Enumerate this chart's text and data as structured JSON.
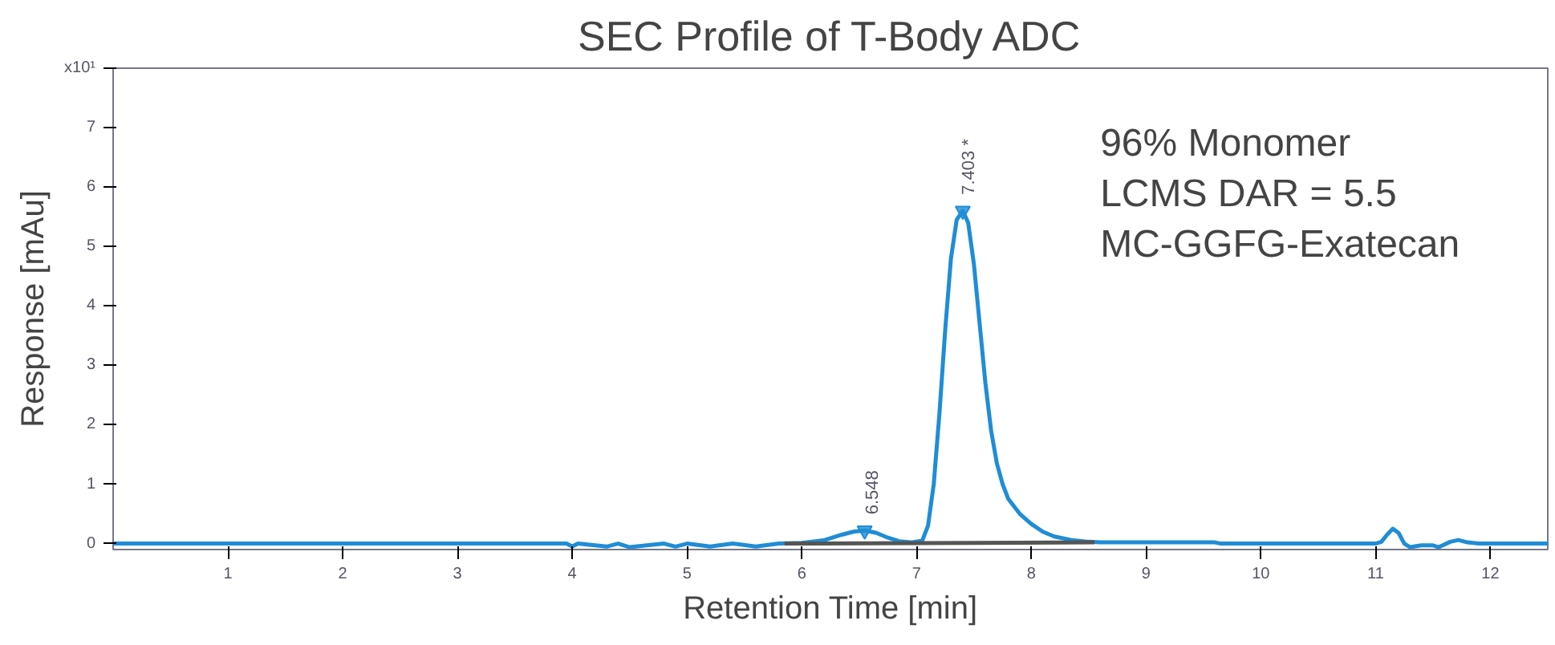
{
  "chart_data": {
    "type": "line",
    "title": "SEC Profile of T-Body ADC",
    "xlabel": "Retention Time [min]",
    "ylabel": "Response [mAu]",
    "xlim": [
      0,
      12.5
    ],
    "ylim": [
      -0.1,
      8
    ],
    "xticks": [
      1,
      2,
      3,
      4,
      5,
      6,
      7,
      8,
      9,
      10,
      11,
      12
    ],
    "yticks": [
      0,
      1,
      2,
      3,
      4,
      5,
      6,
      7,
      {
        "value": 8,
        "label": "x10¹"
      }
    ],
    "grid": false,
    "series": [
      {
        "color": "#1f8dd6",
        "x": [
          0,
          3.95,
          4.0,
          4.05,
          4.3,
          4.4,
          4.5,
          4.8,
          4.9,
          5.0,
          5.2,
          5.4,
          5.6,
          5.8,
          6.0,
          6.2,
          6.35,
          6.45,
          6.548,
          6.65,
          6.75,
          6.85,
          6.95,
          7.05,
          7.1,
          7.15,
          7.2,
          7.25,
          7.3,
          7.35,
          7.403,
          7.45,
          7.5,
          7.55,
          7.6,
          7.65,
          7.7,
          7.75,
          7.8,
          7.9,
          8.0,
          8.1,
          8.2,
          8.35,
          8.5,
          8.6,
          9.0,
          9.6,
          9.65,
          10.5,
          11.0,
          11.05,
          11.1,
          11.15,
          11.2,
          11.25,
          11.3,
          11.4,
          11.5,
          11.55,
          11.65,
          11.72,
          11.8,
          11.9,
          12.5
        ],
        "values": [
          0,
          0,
          -0.05,
          0,
          -0.05,
          0,
          -0.06,
          0,
          -0.05,
          0,
          -0.05,
          0,
          -0.05,
          0,
          0.01,
          0.06,
          0.15,
          0.2,
          0.22,
          0.18,
          0.1,
          0.04,
          0.02,
          0.05,
          0.3,
          1.0,
          2.2,
          3.6,
          4.8,
          5.45,
          5.6,
          5.4,
          4.7,
          3.7,
          2.7,
          1.9,
          1.35,
          1.0,
          0.75,
          0.5,
          0.33,
          0.2,
          0.12,
          0.06,
          0.03,
          0.02,
          0.02,
          0.02,
          0,
          0,
          0,
          0.03,
          0.15,
          0.25,
          0.18,
          0.0,
          -0.06,
          -0.03,
          -0.03,
          -0.06,
          0.03,
          0.06,
          0.02,
          0,
          0
        ]
      },
      {
        "color": "#555555",
        "x": [
          5.85,
          8.55
        ],
        "values": [
          0,
          0.02
        ]
      }
    ],
    "annotations": [
      {
        "text": "6.548",
        "x": 6.548,
        "y": 0.22
      },
      {
        "text": "7.403 *",
        "x": 7.403,
        "y": 5.6
      },
      "96% Monomer",
      "LCMS DAR = 5.5",
      "MC-GGFG-Exatecan"
    ]
  }
}
